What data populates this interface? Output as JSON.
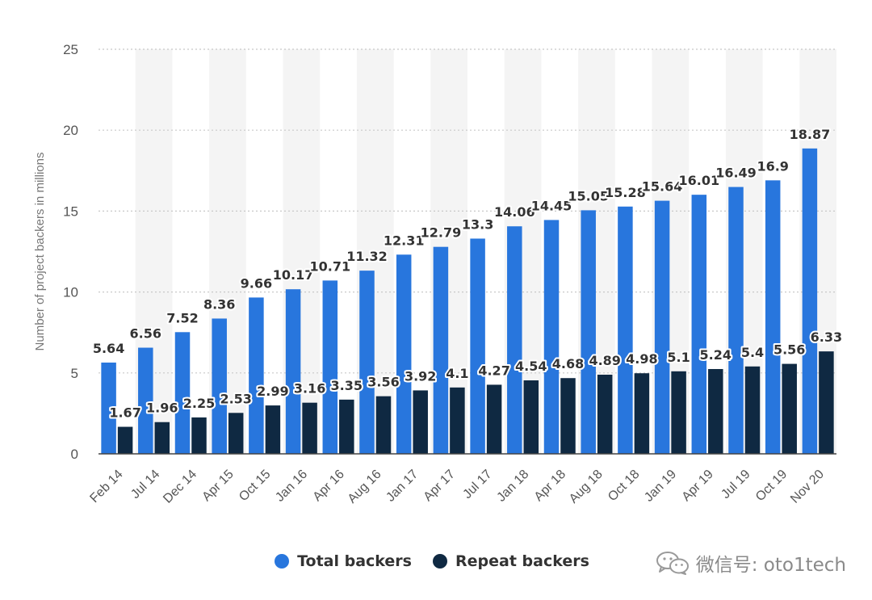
{
  "chart_data": {
    "type": "bar",
    "ylabel": "Number of project backers in millions",
    "xlabel": "",
    "ylim": [
      0,
      25
    ],
    "yticks": [
      0,
      5,
      10,
      15,
      20,
      25
    ],
    "grid": true,
    "legend_position": "bottom-center",
    "categories": [
      "Feb 14",
      "Jul 14",
      "Dec 14",
      "Apr 15",
      "Oct 15",
      "Jan 16",
      "Apr 16",
      "Aug 16",
      "Jan 17",
      "Apr 17",
      "Jul 17",
      "Jan 18",
      "Apr 18",
      "Aug 18",
      "Oct 18",
      "Jan 19",
      "Apr 19",
      "Jul 19",
      "Oct 19",
      "Nov 20"
    ],
    "series": [
      {
        "name": "Total backers",
        "color": "#2876dd",
        "values": [
          5.64,
          6.56,
          7.52,
          8.36,
          9.66,
          10.17,
          10.71,
          11.32,
          12.31,
          12.79,
          13.3,
          14.06,
          14.45,
          15.05,
          15.28,
          15.64,
          16.01,
          16.49,
          16.9,
          18.87
        ]
      },
      {
        "name": "Repeat backers",
        "color": "#0f2942",
        "values": [
          1.67,
          1.96,
          2.25,
          2.53,
          2.99,
          3.16,
          3.35,
          3.56,
          3.92,
          4.1,
          4.27,
          4.54,
          4.68,
          4.89,
          4.98,
          5.1,
          5.24,
          5.4,
          5.56,
          6.33
        ]
      }
    ]
  },
  "watermark": {
    "text": "微信号: oto1tech",
    "icon": "wechat-icon"
  }
}
